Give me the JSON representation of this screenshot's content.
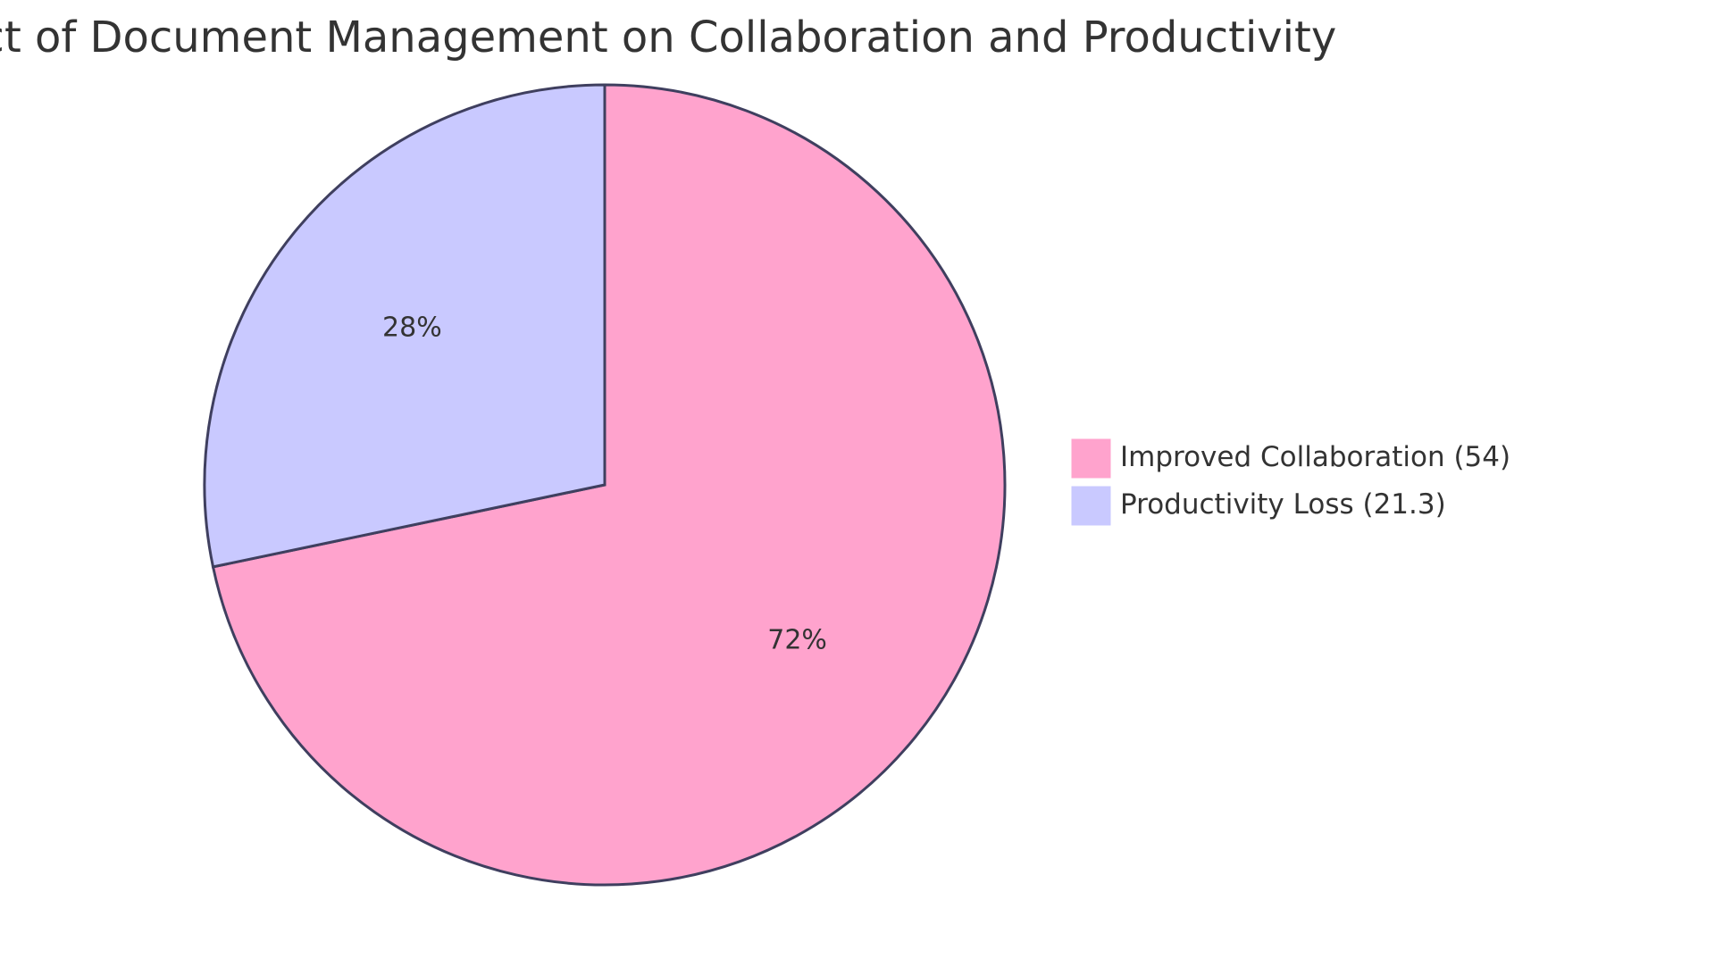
{
  "chart_data": {
    "type": "pie",
    "title": "Impact of Document Management on Collaboration and Productivity",
    "slices": [
      {
        "label": "Improved Collaboration",
        "value": 54,
        "percent_label": "72%",
        "legend_text": "Improved Collaboration (54)",
        "color": "#FFA3CD"
      },
      {
        "label": "Productivity Loss",
        "value": 21.3,
        "percent_label": "28%",
        "legend_text": "Productivity Loss (21.3)",
        "color": "#C9C9FF"
      }
    ],
    "legend_position": "right",
    "stroke_color": "#3F3F5F"
  }
}
